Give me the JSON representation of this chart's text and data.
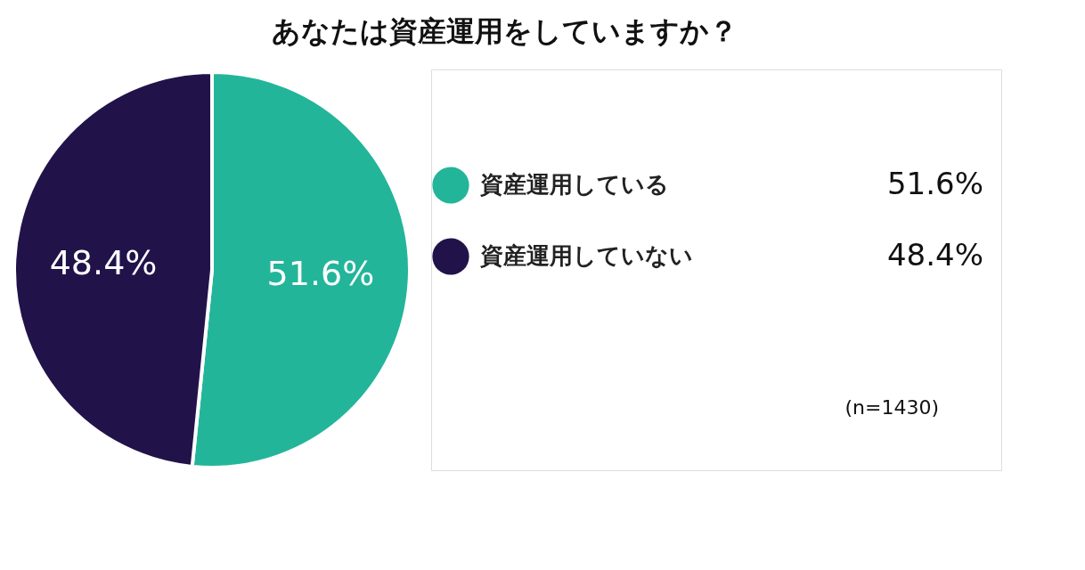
{
  "chart_data": {
    "type": "pie",
    "title": "あなたは資産運用をしていますか？",
    "categories": [
      "資産運用している",
      "資産運用していない"
    ],
    "values": [
      51.6,
      48.4
    ],
    "colors": [
      "#23b59a",
      "#21134a"
    ],
    "value_labels": [
      "51.6%",
      "48.4%"
    ],
    "legend": "right",
    "annotations": [
      "(n=1430)"
    ]
  }
}
